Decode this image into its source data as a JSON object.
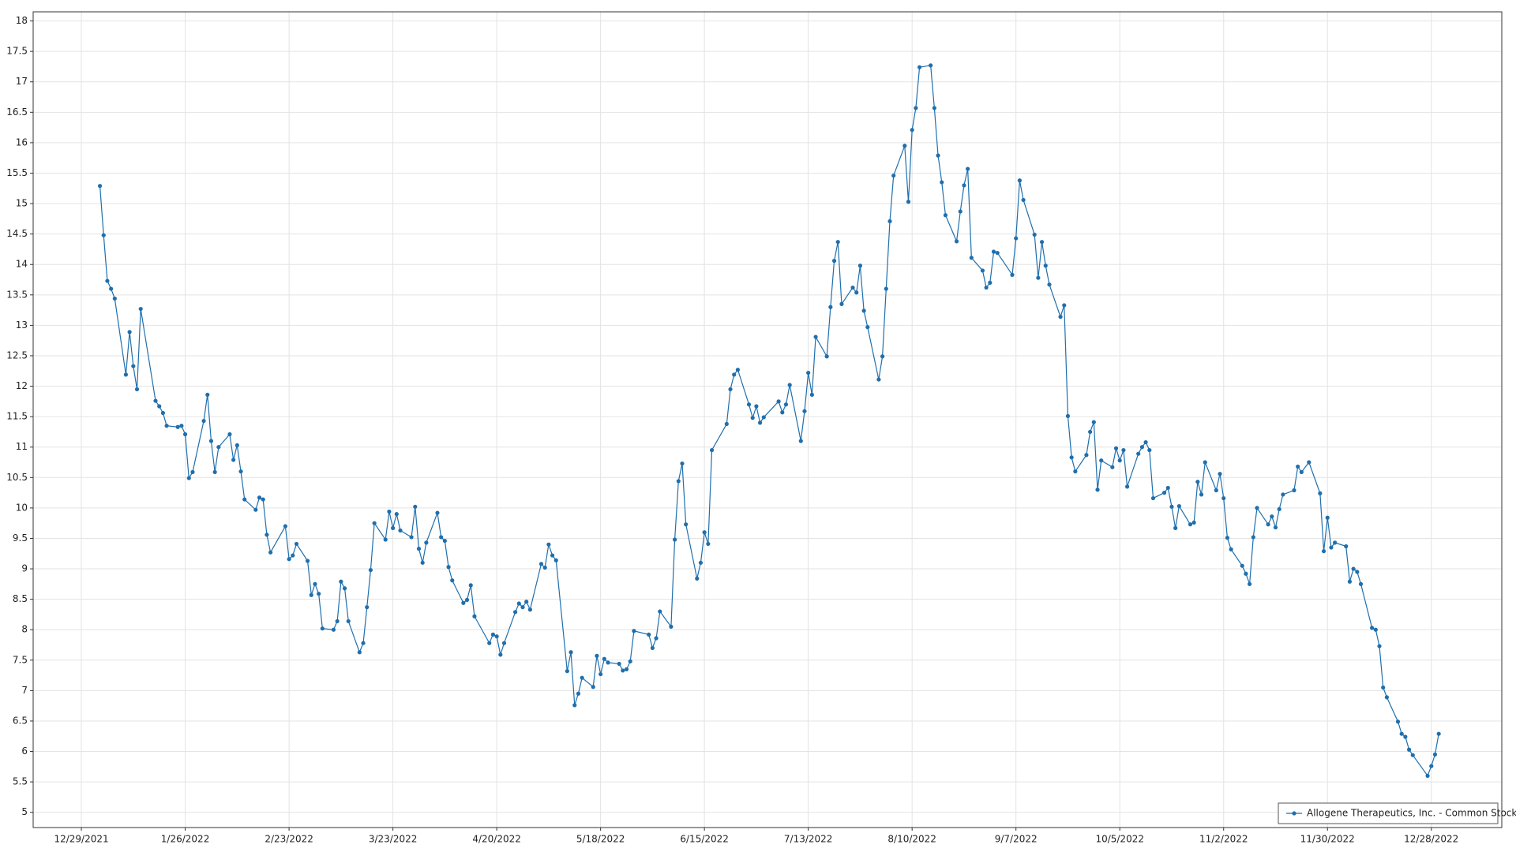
{
  "chart_data": {
    "type": "line",
    "x": [
      "1/3/2022",
      "1/4/2022",
      "1/5/2022",
      "1/6/2022",
      "1/7/2022",
      "1/10/2022",
      "1/11/2022",
      "1/12/2022",
      "1/13/2022",
      "1/14/2022",
      "1/18/2022",
      "1/19/2022",
      "1/20/2022",
      "1/21/2022",
      "1/24/2022",
      "1/25/2022",
      "1/26/2022",
      "1/27/2022",
      "1/28/2022",
      "1/31/2022",
      "2/1/2022",
      "2/2/2022",
      "2/3/2022",
      "2/4/2022",
      "2/7/2022",
      "2/8/2022",
      "2/9/2022",
      "2/10/2022",
      "2/11/2022",
      "2/14/2022",
      "2/15/2022",
      "2/16/2022",
      "2/17/2022",
      "2/18/2022",
      "2/22/2022",
      "2/23/2022",
      "2/24/2022",
      "2/25/2022",
      "2/28/2022",
      "3/1/2022",
      "3/2/2022",
      "3/3/2022",
      "3/4/2022",
      "3/7/2022",
      "3/8/2022",
      "3/9/2022",
      "3/10/2022",
      "3/11/2022",
      "3/14/2022",
      "3/15/2022",
      "3/16/2022",
      "3/17/2022",
      "3/18/2022",
      "3/21/2022",
      "3/22/2022",
      "3/23/2022",
      "3/24/2022",
      "3/25/2022",
      "3/28/2022",
      "3/29/2022",
      "3/30/2022",
      "3/31/2022",
      "4/1/2022",
      "4/4/2022",
      "4/5/2022",
      "4/6/2022",
      "4/7/2022",
      "4/8/2022",
      "4/11/2022",
      "4/12/2022",
      "4/13/2022",
      "4/14/2022",
      "4/18/2022",
      "4/19/2022",
      "4/20/2022",
      "4/21/2022",
      "4/22/2022",
      "4/25/2022",
      "4/26/2022",
      "4/27/2022",
      "4/28/2022",
      "4/29/2022",
      "5/2/2022",
      "5/3/2022",
      "5/4/2022",
      "5/5/2022",
      "5/6/2022",
      "5/9/2022",
      "5/10/2022",
      "5/11/2022",
      "5/12/2022",
      "5/13/2022",
      "5/16/2022",
      "5/17/2022",
      "5/18/2022",
      "5/19/2022",
      "5/20/2022",
      "5/23/2022",
      "5/24/2022",
      "5/25/2022",
      "5/26/2022",
      "5/27/2022",
      "5/31/2022",
      "6/1/2022",
      "6/2/2022",
      "6/3/2022",
      "6/6/2022",
      "6/7/2022",
      "6/8/2022",
      "6/9/2022",
      "6/10/2022",
      "6/13/2022",
      "6/14/2022",
      "6/15/2022",
      "6/16/2022",
      "6/17/2022",
      "6/21/2022",
      "6/22/2022",
      "6/23/2022",
      "6/24/2022",
      "6/27/2022",
      "6/28/2022",
      "6/29/2022",
      "6/30/2022",
      "7/1/2022",
      "7/5/2022",
      "7/6/2022",
      "7/7/2022",
      "7/8/2022",
      "7/11/2022",
      "7/12/2022",
      "7/13/2022",
      "7/14/2022",
      "7/15/2022",
      "7/18/2022",
      "7/19/2022",
      "7/20/2022",
      "7/21/2022",
      "7/22/2022",
      "7/25/2022",
      "7/26/2022",
      "7/27/2022",
      "7/28/2022",
      "7/29/2022",
      "8/1/2022",
      "8/2/2022",
      "8/3/2022",
      "8/4/2022",
      "8/5/2022",
      "8/8/2022",
      "8/9/2022",
      "8/10/2022",
      "8/11/2022",
      "8/12/2022",
      "8/15/2022",
      "8/16/2022",
      "8/17/2022",
      "8/18/2022",
      "8/19/2022",
      "8/22/2022",
      "8/23/2022",
      "8/24/2022",
      "8/25/2022",
      "8/26/2022",
      "8/29/2022",
      "8/30/2022",
      "8/31/2022",
      "9/1/2022",
      "9/2/2022",
      "9/6/2022",
      "9/7/2022",
      "9/8/2022",
      "9/9/2022",
      "9/12/2022",
      "9/13/2022",
      "9/14/2022",
      "9/15/2022",
      "9/16/2022",
      "9/19/2022",
      "9/20/2022",
      "9/21/2022",
      "9/22/2022",
      "9/23/2022",
      "9/26/2022",
      "9/27/2022",
      "9/28/2022",
      "9/29/2022",
      "9/30/2022",
      "10/3/2022",
      "10/4/2022",
      "10/5/2022",
      "10/6/2022",
      "10/7/2022",
      "10/10/2022",
      "10/11/2022",
      "10/12/2022",
      "10/13/2022",
      "10/14/2022",
      "10/17/2022",
      "10/18/2022",
      "10/19/2022",
      "10/20/2022",
      "10/21/2022",
      "10/24/2022",
      "10/25/2022",
      "10/26/2022",
      "10/27/2022",
      "10/28/2022",
      "10/31/2022",
      "11/1/2022",
      "11/2/2022",
      "11/3/2022",
      "11/4/2022",
      "11/7/2022",
      "11/8/2022",
      "11/9/2022",
      "11/10/2022",
      "11/11/2022",
      "11/14/2022",
      "11/15/2022",
      "11/16/2022",
      "11/17/2022",
      "11/18/2022",
      "11/21/2022",
      "11/22/2022",
      "11/23/2022",
      "11/25/2022",
      "11/28/2022",
      "11/29/2022",
      "11/30/2022",
      "12/1/2022",
      "12/2/2022",
      "12/5/2022",
      "12/6/2022",
      "12/7/2022",
      "12/8/2022",
      "12/9/2022",
      "12/12/2022",
      "12/13/2022",
      "12/14/2022",
      "12/15/2022",
      "12/16/2022",
      "12/19/2022",
      "12/20/2022",
      "12/21/2022",
      "12/22/2022",
      "12/23/2022",
      "12/27/2022",
      "12/28/2022",
      "12/29/2022",
      "12/30/2022"
    ],
    "series": [
      {
        "name": "Allogene Therapeutics, Inc. - Common Stock",
        "color": "#1f6fad",
        "values": [
          15.29,
          14.48,
          13.73,
          13.6,
          13.44,
          12.19,
          12.89,
          12.33,
          11.95,
          13.27,
          11.76,
          11.67,
          11.56,
          11.35,
          11.33,
          11.35,
          11.21,
          10.49,
          10.59,
          11.43,
          11.86,
          11.1,
          10.59,
          11,
          11.21,
          10.79,
          11.03,
          10.6,
          10.14,
          9.97,
          10.17,
          10.14,
          9.56,
          9.27,
          9.7,
          9.16,
          9.22,
          9.41,
          9.13,
          8.57,
          8.75,
          8.59,
          8.02,
          8,
          8.14,
          8.79,
          8.68,
          8.14,
          7.63,
          7.78,
          8.37,
          8.98,
          9.75,
          9.48,
          9.94,
          9.67,
          9.9,
          9.63,
          9.52,
          10.02,
          9.33,
          9.1,
          9.43,
          9.92,
          9.52,
          9.46,
          9.03,
          8.81,
          8.44,
          8.49,
          8.73,
          8.22,
          7.78,
          7.92,
          7.89,
          7.59,
          7.78,
          8.29,
          8.43,
          8.37,
          8.46,
          8.33,
          9.08,
          9.02,
          9.4,
          9.22,
          9.14,
          7.32,
          7.63,
          6.76,
          6.95,
          7.21,
          7.06,
          7.57,
          7.27,
          7.52,
          7.46,
          7.44,
          7.33,
          7.35,
          7.48,
          7.98,
          7.92,
          7.7,
          7.86,
          8.3,
          8.05,
          9.48,
          10.44,
          10.73,
          9.73,
          8.84,
          9.1,
          9.6,
          9.41,
          10.95,
          11.38,
          11.95,
          12.19,
          12.27,
          11.7,
          11.48,
          11.67,
          11.4,
          11.49,
          11.75,
          11.57,
          11.7,
          12.02,
          11.1,
          11.59,
          12.22,
          11.86,
          12.81,
          12.49,
          13.3,
          14.06,
          14.37,
          13.35,
          13.62,
          13.54,
          13.98,
          13.24,
          12.97,
          12.11,
          12.49,
          13.6,
          14.71,
          15.46,
          15.95,
          15.03,
          16.21,
          16.57,
          17.24,
          17.27,
          16.57,
          15.79,
          15.35,
          14.81,
          14.38,
          14.87,
          15.3,
          15.57,
          14.11,
          13.9,
          13.62,
          13.7,
          14.21,
          14.19,
          13.83,
          14.43,
          15.38,
          15.06,
          14.49,
          13.78,
          14.37,
          13.98,
          13.67,
          13.14,
          13.33,
          11.51,
          10.83,
          10.6,
          10.87,
          11.25,
          11.41,
          10.3,
          10.78,
          10.67,
          10.98,
          10.78,
          10.95,
          10.35,
          10.89,
          11,
          11.08,
          10.95,
          10.16,
          10.25,
          10.33,
          10.02,
          9.67,
          10.03,
          9.73,
          9.76,
          10.43,
          10.22,
          10.75,
          10.29,
          10.56,
          10.16,
          9.51,
          9.32,
          9.05,
          8.92,
          8.75,
          9.52,
          10,
          9.73,
          9.86,
          9.68,
          9.98,
          10.22,
          10.29,
          10.68,
          10.59,
          10.75,
          10.24,
          9.29,
          9.84,
          9.35,
          9.43,
          9.37,
          8.79,
          9,
          8.95,
          8.75,
          8.03,
          8,
          7.73,
          7.05,
          6.89,
          6.49,
          6.29,
          6.24,
          6.03,
          5.94,
          5.6,
          5.76,
          5.95,
          6.29
        ]
      }
    ],
    "xlim": [
      "12/16/2021",
      "1/16/2023"
    ],
    "xticks": [
      "12/29/2021",
      "1/26/2022",
      "2/23/2022",
      "3/23/2022",
      "4/20/2022",
      "5/18/2022",
      "6/15/2022",
      "7/13/2022",
      "8/10/2022",
      "9/7/2022",
      "10/5/2022",
      "11/2/2022",
      "11/30/2022",
      "12/28/2022"
    ],
    "ylim": [
      4.75,
      18.15
    ],
    "yticks": [
      5,
      5.5,
      6,
      6.5,
      7,
      7.5,
      8,
      8.5,
      9,
      9.5,
      10,
      10.5,
      11,
      11.5,
      12,
      12.5,
      13,
      13.5,
      14,
      14.5,
      15,
      15.5,
      16,
      16.5,
      17,
      17.5,
      18
    ],
    "grid": true,
    "legend": "lower right"
  }
}
